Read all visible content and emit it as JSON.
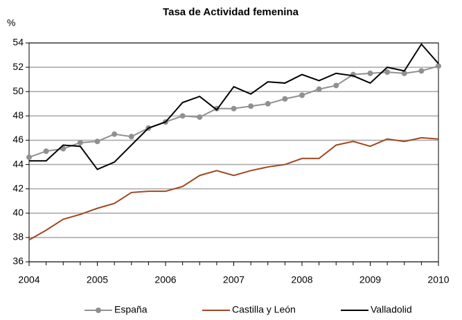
{
  "chart_data": {
    "type": "line",
    "title": "Tasa de Actividad femenina",
    "y_label": "%",
    "x": [
      2004,
      2004.25,
      2004.5,
      2004.75,
      2005,
      2005.25,
      2005.5,
      2005.75,
      2006,
      2006.25,
      2006.5,
      2006.75,
      2007,
      2007.25,
      2007.5,
      2007.75,
      2008,
      2008.25,
      2008.5,
      2008.75,
      2009,
      2009.25,
      2009.5,
      2009.75,
      2010
    ],
    "series": [
      {
        "name": "España",
        "color": "#909090",
        "marker": true,
        "values": [
          44.6,
          45.1,
          45.3,
          45.8,
          45.9,
          46.5,
          46.3,
          47.0,
          47.5,
          48.0,
          47.9,
          48.6,
          48.6,
          48.8,
          49.0,
          49.4,
          49.7,
          50.2,
          50.5,
          51.4,
          51.5,
          51.6,
          51.5,
          51.7,
          52.1
        ]
      },
      {
        "name": "Castilla y León",
        "color": "#a0461e",
        "marker": false,
        "values": [
          37.8,
          38.6,
          39.5,
          39.9,
          40.4,
          40.8,
          41.7,
          41.8,
          41.8,
          42.2,
          43.1,
          43.5,
          43.1,
          43.5,
          43.8,
          44.0,
          44.5,
          44.5,
          45.6,
          45.9,
          45.5,
          46.1,
          45.9,
          46.2,
          46.1
        ]
      },
      {
        "name": "Valladolid",
        "color": "#000000",
        "marker": false,
        "values": [
          44.3,
          44.3,
          45.6,
          45.5,
          43.6,
          44.2,
          45.6,
          47.0,
          47.5,
          49.1,
          49.6,
          48.5,
          50.4,
          49.8,
          50.8,
          50.7,
          51.4,
          50.9,
          51.5,
          51.3,
          50.7,
          52.0,
          51.7,
          53.9,
          52.3
        ]
      }
    ],
    "xlim": [
      2004,
      2010
    ],
    "xticks": [
      2004,
      2005,
      2006,
      2007,
      2008,
      2009,
      2010
    ],
    "ylim": [
      36,
      54
    ],
    "yticks": [
      36,
      38,
      40,
      42,
      44,
      46,
      48,
      50,
      52,
      54
    ],
    "grid": true,
    "legend": "bottom"
  }
}
